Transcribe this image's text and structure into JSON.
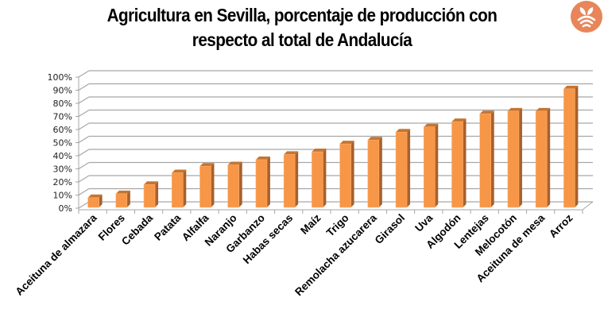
{
  "header": {
    "title_line1": "Agricultura en Sevilla, porcentaje de producción con",
    "title_line2": "respecto al total de Andalucía",
    "logo_icon": "plant-signal-icon",
    "logo_color": "#E8855A"
  },
  "colors": {
    "bar_front": "#F79646",
    "bar_side": "#A9602A",
    "bar_top": "#C5752F",
    "grid": "#A6A6A6",
    "axis": "#A6A6A6"
  },
  "chart_data": {
    "type": "bar",
    "title": "Agricultura en Sevilla, porcentaje de producción con respecto al total de Andalucía",
    "xlabel": "",
    "ylabel": "",
    "ylim": [
      0,
      100
    ],
    "yticks": [
      "0%",
      "10%",
      "20%",
      "30%",
      "40%",
      "50%",
      "60%",
      "70%",
      "80%",
      "90%",
      "100%"
    ],
    "grid": true,
    "legend": null,
    "style": "3d-column",
    "categories": [
      "Aceituna de almazara",
      "Flores",
      "Cebada",
      "Patata",
      "Alfalfa",
      "Naranjo",
      "Garbanzo",
      "Habas secas",
      "Maíz",
      "Trigo",
      "Remolacha azucarera",
      "Girasol",
      "Uva",
      "Algodón",
      "Lentejas",
      "Melocotón",
      "Aceituna de mesa",
      "Arroz"
    ],
    "values": [
      8,
      11,
      18,
      27,
      32,
      33,
      37,
      41,
      43,
      49,
      52,
      58,
      62,
      66,
      72,
      74,
      74,
      91
    ],
    "unit": "%"
  }
}
